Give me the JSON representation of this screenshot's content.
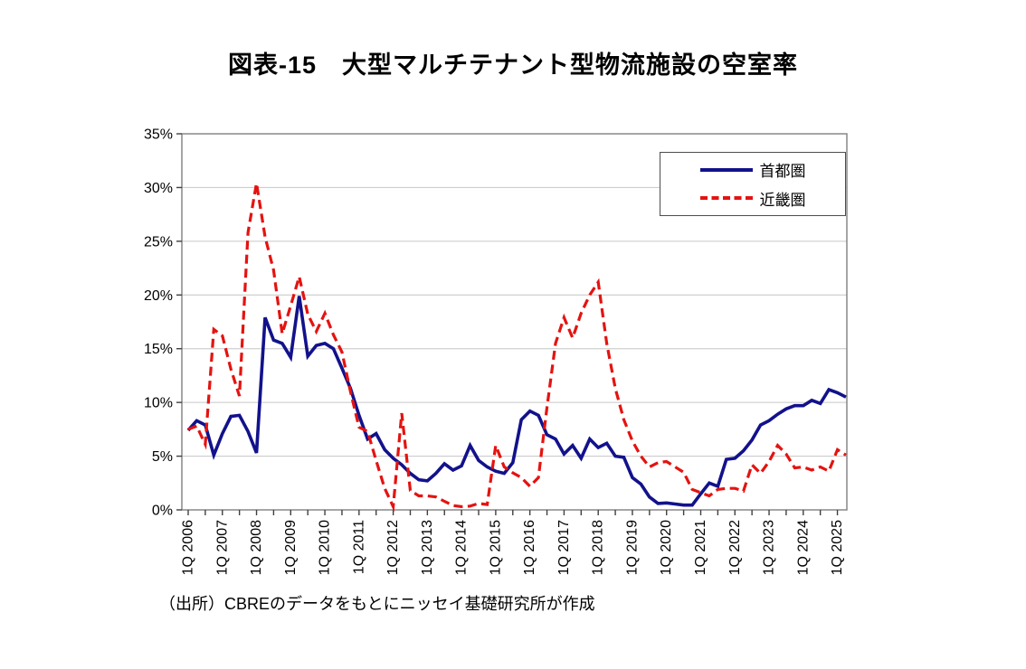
{
  "page": {
    "title": "図表-15　大型マルチテナント型物流施設の空室率",
    "source_note": "（出所）CBREのデータをもとにニッセイ基礎研究所が作成"
  },
  "legend": {
    "items": [
      {
        "label": "首都圏",
        "color": "#12128c",
        "style": "solid"
      },
      {
        "label": "近畿圏",
        "color": "#e41310",
        "style": "dashed"
      }
    ]
  },
  "axes": {
    "y_tick_labels": [
      "0%",
      "5%",
      "10%",
      "15%",
      "20%",
      "25%",
      "30%",
      "35%"
    ],
    "x_tick_labels": [
      "1Q 2006",
      "1Q 2007",
      "1Q 2008",
      "1Q 2009",
      "1Q 2010",
      "1Q 2011",
      "1Q 2012",
      "1Q 2013",
      "1Q 2014",
      "1Q 2015",
      "1Q 2016",
      "1Q 2017",
      "1Q 2018",
      "1Q 2019",
      "1Q 2020",
      "1Q 2021",
      "1Q 2022",
      "1Q 2023",
      "1Q 2024",
      "1Q 2025"
    ]
  },
  "chart_data": {
    "type": "line",
    "title": "図表-15　大型マルチテナント型物流施設の空室率",
    "xlabel": "",
    "ylabel": "",
    "ylim": [
      0,
      35
    ],
    "y_ticks_percent": [
      0,
      5,
      10,
      15,
      20,
      25,
      30,
      35
    ],
    "grid": "horizontal",
    "legend_position": "top-right",
    "x_quarters": [
      "2006Q1",
      "2006Q2",
      "2006Q3",
      "2006Q4",
      "2007Q1",
      "2007Q2",
      "2007Q3",
      "2007Q4",
      "2008Q1",
      "2008Q2",
      "2008Q3",
      "2008Q4",
      "2009Q1",
      "2009Q2",
      "2009Q3",
      "2009Q4",
      "2010Q1",
      "2010Q2",
      "2010Q3",
      "2010Q4",
      "2011Q1",
      "2011Q2",
      "2011Q3",
      "2011Q4",
      "2012Q1",
      "2012Q2",
      "2012Q3",
      "2012Q4",
      "2013Q1",
      "2013Q2",
      "2013Q3",
      "2013Q4",
      "2014Q1",
      "2014Q2",
      "2014Q3",
      "2014Q4",
      "2015Q1",
      "2015Q2",
      "2015Q3",
      "2015Q4",
      "2016Q1",
      "2016Q2",
      "2016Q3",
      "2016Q4",
      "2017Q1",
      "2017Q2",
      "2017Q3",
      "2017Q4",
      "2018Q1",
      "2018Q2",
      "2018Q3",
      "2018Q4",
      "2019Q1",
      "2019Q2",
      "2019Q3",
      "2019Q4",
      "2020Q1",
      "2020Q2",
      "2020Q3",
      "2020Q4",
      "2021Q1",
      "2021Q2",
      "2021Q3",
      "2021Q4",
      "2022Q1",
      "2022Q2",
      "2022Q3",
      "2022Q4",
      "2023Q1",
      "2023Q2",
      "2023Q3",
      "2023Q4",
      "2024Q1",
      "2024Q2",
      "2024Q3",
      "2024Q4",
      "2025Q1",
      "2025Q2"
    ],
    "series": [
      {
        "name": "首都圏",
        "color": "#12128c",
        "line": "solid",
        "values": [
          7.4,
          8.3,
          7.9,
          5.1,
          7.1,
          8.7,
          8.8,
          7.3,
          5.3,
          17.9,
          15.8,
          15.5,
          14.2,
          19.9,
          14.3,
          15.3,
          15.5,
          15.0,
          13.2,
          11.3,
          8.8,
          6.6,
          7.1,
          5.6,
          4.8,
          4.2,
          3.4,
          2.8,
          2.7,
          3.4,
          4.3,
          3.7,
          4.1,
          6.0,
          4.6,
          4.0,
          3.6,
          3.4,
          4.4,
          8.4,
          9.2,
          8.8,
          7.0,
          6.6,
          5.2,
          6.0,
          4.8,
          6.6,
          5.8,
          6.2,
          5.0,
          4.9,
          3.0,
          2.4,
          1.2,
          0.6,
          0.65,
          0.55,
          0.45,
          0.45,
          1.5,
          2.5,
          2.2,
          4.7,
          4.8,
          5.5,
          6.5,
          7.9,
          8.3,
          8.9,
          9.4,
          9.7,
          9.7,
          10.2,
          9.9,
          11.2,
          10.9,
          10.5
        ]
      },
      {
        "name": "近畿圏",
        "color": "#e41310",
        "line": "dashed",
        "values": [
          7.5,
          7.8,
          6.1,
          16.8,
          16.2,
          13.1,
          10.6,
          25.8,
          30.4,
          25.4,
          22.3,
          16.4,
          19.0,
          21.7,
          18.2,
          16.6,
          18.3,
          16.3,
          14.7,
          11.0,
          7.7,
          7.3,
          4.6,
          2.0,
          0.3,
          9.0,
          1.8,
          1.3,
          1.3,
          1.2,
          0.8,
          0.4,
          0.3,
          0.35,
          0.6,
          0.5,
          6.0,
          4.0,
          3.45,
          3.0,
          2.2,
          3.0,
          9.5,
          15.5,
          17.9,
          16.0,
          18.3,
          20.0,
          21.2,
          15.5,
          11.3,
          8.4,
          6.4,
          5.0,
          4.0,
          4.4,
          4.5,
          4.0,
          3.5,
          1.9,
          1.6,
          1.3,
          1.9,
          2.0,
          2.0,
          1.75,
          4.2,
          3.4,
          4.5,
          6.0,
          5.2,
          3.9,
          4.0,
          3.7,
          4.0,
          3.6,
          5.6,
          5.1
        ]
      }
    ]
  },
  "style": {
    "grid_color": "#c6c6c6",
    "border_color": "#7f7f7f",
    "tick_color": "#404040",
    "label_color": "#000000"
  }
}
